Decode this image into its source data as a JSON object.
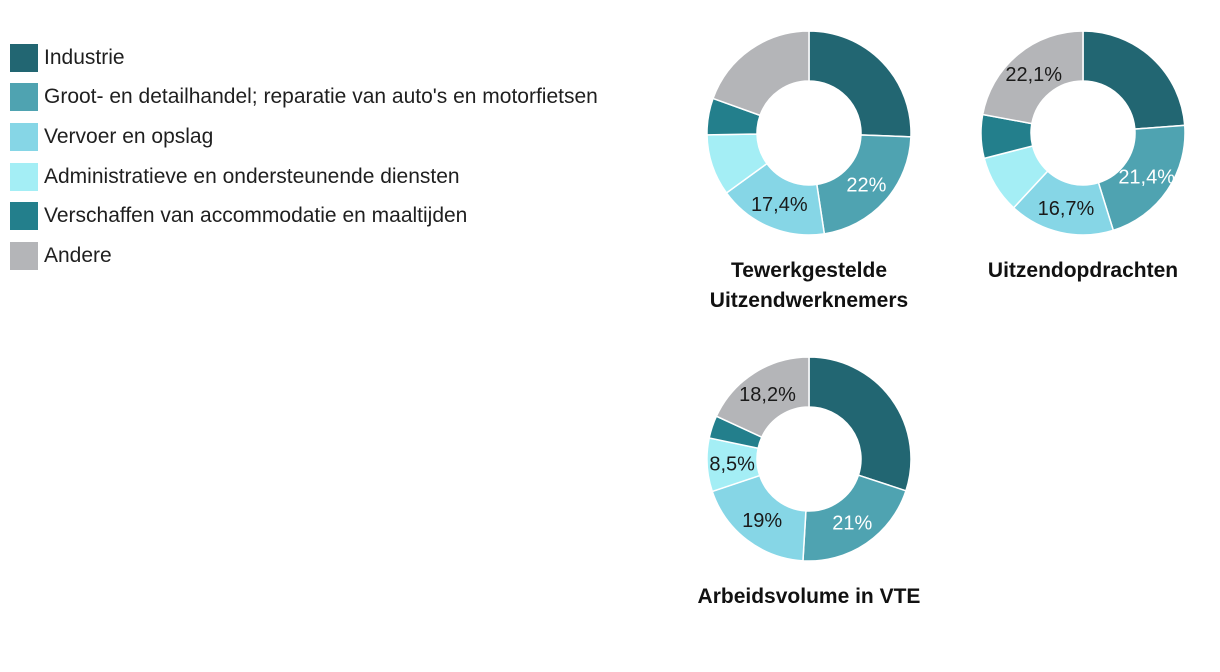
{
  "legend": [
    {
      "label": "Industrie",
      "color": "#226672"
    },
    {
      "label": "Groot- en detailhandel; reparatie van auto's en motorfietsen",
      "color": "#4fa3b1"
    },
    {
      "label": "Vervoer en opslag",
      "color": "#86d6e6"
    },
    {
      "label": "Administratieve en ondersteunende diensten",
      "color": "#a4eef5"
    },
    {
      "label": "Verschaffen van accommodatie en maaltijden",
      "color": "#237f8c"
    },
    {
      "label": "Andere",
      "color": "#b4b5b8"
    }
  ],
  "chart_data": [
    {
      "type": "pie",
      "title": "Tewerkgestelde Uitzendwerknemers",
      "categories": [
        "Industrie",
        "Groot- en detailhandel; reparatie van auto's en motorfietsen",
        "Vervoer en opslag",
        "Administratieve en ondersteunende diensten",
        "Verschaffen van accommodatie en maaltijden",
        "Andere"
      ],
      "values": [
        25.6,
        22,
        17.4,
        9.7,
        5.8,
        19.5
      ],
      "labels": [
        "",
        "22%",
        "17,4%",
        "",
        "",
        ""
      ]
    },
    {
      "type": "pie",
      "title": "Uitzendopdrachten",
      "categories": [
        "Industrie",
        "Groot- en detailhandel; reparatie van auto's en motorfietsen",
        "Vervoer en opslag",
        "Administratieve en ondersteunende diensten",
        "Verschaffen van accommodatie en maaltijden",
        "Andere"
      ],
      "values": [
        23.8,
        21.4,
        16.7,
        9.1,
        6.9,
        22.1
      ],
      "labels": [
        "",
        "21,4%",
        "16,7%",
        "",
        "",
        "22,1%"
      ]
    },
    {
      "type": "pie",
      "title": "Arbeidsvolume in VTE",
      "categories": [
        "Industrie",
        "Groot- en detailhandel; reparatie van auto's en motorfietsen",
        "Vervoer en opslag",
        "Administratieve en ondersteunende diensten",
        "Verschaffen van accommodatie en maaltijden",
        "Andere"
      ],
      "values": [
        30.2,
        21,
        19,
        8.5,
        3.6,
        18.2
      ],
      "labels": [
        "",
        "21%",
        "19%",
        "8,5%",
        "",
        "18,2%"
      ]
    }
  ]
}
